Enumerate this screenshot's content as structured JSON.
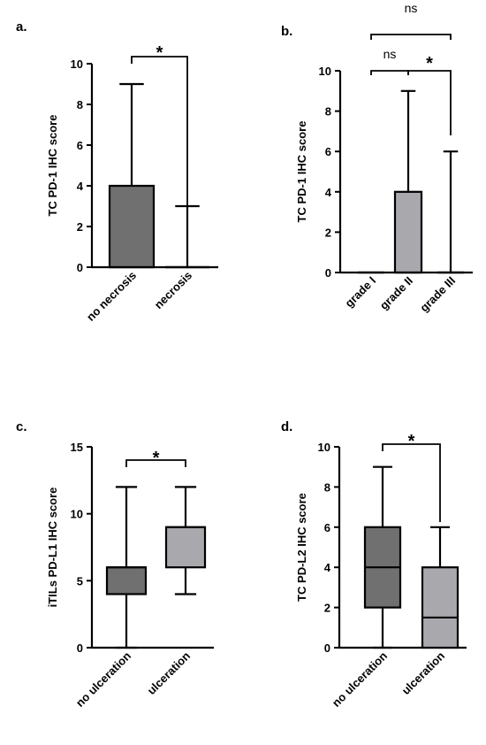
{
  "chart_data": [
    {
      "type": "box",
      "panel": "a.",
      "ylabel": "TC PD-1 IHC score",
      "ylim": [
        0,
        10
      ],
      "yticks": [
        "0",
        "2",
        "4",
        "6",
        "8",
        "10"
      ],
      "categories": [
        "no necrosis",
        "necrosis"
      ],
      "boxes": [
        {
          "min": 0,
          "q1": 0,
          "median": 0,
          "q3": 4,
          "max": 9,
          "fill": "#707070"
        },
        {
          "min": 0,
          "q1": 0,
          "median": 0,
          "q3": 0,
          "max": 3,
          "fill": "#a9a9ad"
        }
      ],
      "comparisons": [
        {
          "from": 0,
          "to": 1,
          "label": "*"
        }
      ]
    },
    {
      "type": "box",
      "panel": "b.",
      "ylabel": "TC PD-1 IHC score",
      "ylim": [
        0,
        10
      ],
      "yticks": [
        "0",
        "2",
        "4",
        "6",
        "8",
        "10"
      ],
      "categories": [
        "grade I",
        "grade II",
        "grade III"
      ],
      "boxes": [
        {
          "min": 0,
          "q1": 0,
          "median": 0,
          "q3": 0,
          "max": 0,
          "fill": "#707070"
        },
        {
          "min": 0,
          "q1": 0,
          "median": 0,
          "q3": 4,
          "max": 9,
          "fill": "#a9a9ad"
        },
        {
          "min": 0,
          "q1": 0,
          "median": 0,
          "q3": 0,
          "max": 6,
          "fill": "#707070"
        }
      ],
      "comparisons": [
        {
          "from": 0,
          "to": 1,
          "label": "ns"
        },
        {
          "from": 1,
          "to": 2,
          "label": "*"
        },
        {
          "from": 0,
          "to": 2,
          "label": "ns"
        }
      ]
    },
    {
      "type": "box",
      "panel": "c.",
      "ylabel": "iTILs PD-L1 IHC score",
      "ylim": [
        0,
        15
      ],
      "yticks": [
        "0",
        "5",
        "10",
        "15"
      ],
      "categories": [
        "no ulceration",
        "ulceration"
      ],
      "boxes": [
        {
          "min": 0,
          "q1": 4,
          "median": 6,
          "q3": 6,
          "max": 12,
          "fill": "#707070"
        },
        {
          "min": 4,
          "q1": 6,
          "median": 9,
          "q3": 9,
          "max": 12,
          "fill": "#a9a9ad"
        }
      ],
      "comparisons": [
        {
          "from": 0,
          "to": 1,
          "label": "*"
        }
      ]
    },
    {
      "type": "box",
      "panel": "d.",
      "ylabel": "TC PD-L2 IHC score",
      "ylim": [
        0,
        10
      ],
      "yticks": [
        "0",
        "2",
        "4",
        "6",
        "8",
        "10"
      ],
      "categories": [
        "no ulceration",
        "ulceration"
      ],
      "boxes": [
        {
          "min": 0,
          "q1": 2,
          "median": 4,
          "q3": 6,
          "max": 9,
          "fill": "#707070"
        },
        {
          "min": 0,
          "q1": 0,
          "median": 1.5,
          "q3": 4,
          "max": 6,
          "fill": "#a9a9ad"
        }
      ],
      "comparisons": [
        {
          "from": 0,
          "to": 1,
          "label": "*"
        }
      ]
    }
  ]
}
